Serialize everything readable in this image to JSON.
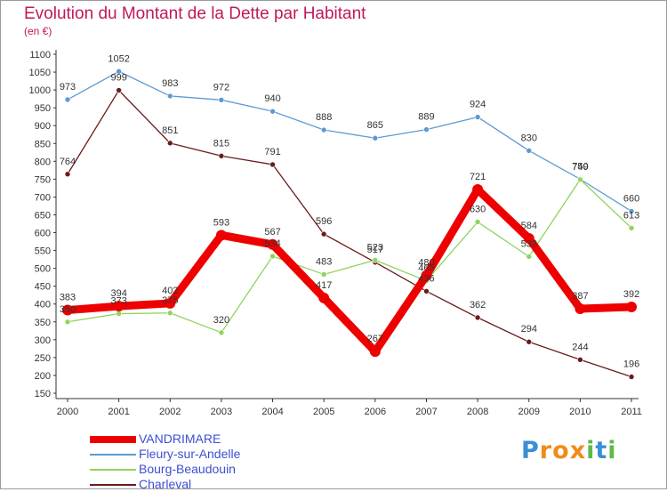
{
  "colors": {
    "vandrimare": "#ee0000",
    "fleury": "#5b9bd5",
    "bourg": "#8fd45c",
    "charleval": "#6b1a1a",
    "title": "#c2185b",
    "legend_text": "#3c4fd1"
  },
  "chart_data": {
    "type": "line",
    "title": "Evolution du Montant de la Dette par Habitant",
    "subtitle": "(en €)",
    "x": [
      "2000",
      "2001",
      "2002",
      "2003",
      "2004",
      "2005",
      "2006",
      "2007",
      "2008",
      "2009",
      "2010",
      "2011"
    ],
    "ylim": [
      150,
      1100
    ],
    "yticks": [
      150,
      200,
      250,
      300,
      350,
      400,
      450,
      500,
      550,
      600,
      650,
      700,
      750,
      800,
      850,
      900,
      950,
      1000,
      1050,
      1100
    ],
    "grid": false,
    "legend_position": "bottom-left",
    "series": [
      {
        "name": "VANDRIMARE",
        "key": "vandrimare",
        "values": [
          383,
          394,
          402,
          593,
          567,
          417,
          267,
          480,
          721,
          584,
          387,
          392
        ]
      },
      {
        "name": "Fleury-sur-Andelle",
        "key": "fleury",
        "values": [
          973,
          1052,
          983,
          972,
          940,
          888,
          865,
          889,
          924,
          830,
          750,
          660
        ]
      },
      {
        "name": "Bourg-Beaudouin",
        "key": "bourg",
        "values": [
          350,
          373,
          375,
          320,
          534,
          483,
          523,
          465,
          630,
          533,
          749,
          613
        ]
      },
      {
        "name": "Charleval",
        "key": "charleval",
        "values": [
          764,
          999,
          851,
          815,
          791,
          596,
          517,
          436,
          362,
          294,
          244,
          196
        ]
      }
    ],
    "data_labels": {
      "vandrimare": [
        "383",
        "394",
        "402",
        "593",
        "567",
        "417",
        "267",
        "480",
        "721",
        "584",
        "387",
        "392"
      ],
      "fleury": [
        "973",
        "1052",
        "983",
        "972",
        "940",
        "888",
        "865",
        "889",
        "924",
        "830",
        "750",
        "660"
      ],
      "bourg": [
        "350",
        "373",
        "375",
        "320",
        "534",
        "483",
        "523",
        "465",
        "630",
        "533",
        "749",
        "613"
      ],
      "charleval": [
        "764",
        "999",
        "851",
        "815",
        "791",
        "596",
        "517",
        "436",
        "362",
        "294",
        "244",
        "196"
      ]
    }
  },
  "brand": {
    "letters": [
      "P",
      "r",
      "o",
      "x",
      "i",
      "t",
      "i"
    ],
    "colors": [
      "#3a8fd6",
      "#f08c1a",
      "#f08c1a",
      "#f08c1a",
      "#5fb84a",
      "#3a8fd6",
      "#5fb84a"
    ]
  }
}
